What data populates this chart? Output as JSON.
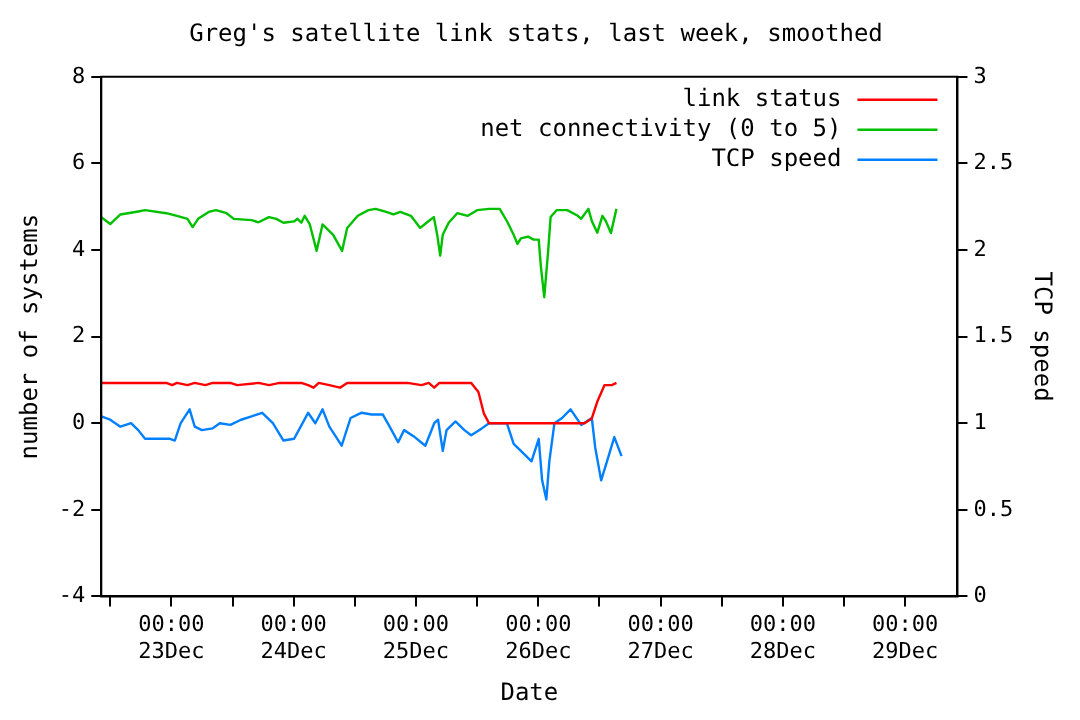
{
  "chart_data": {
    "type": "line",
    "title": "Greg's satellite link stats, last week, smoothed",
    "xlabel": "Date",
    "ylabel": "number of systems",
    "y2label": "TCP speed",
    "legend": "top right",
    "marker": "none",
    "grid": false,
    "xlim": [
      "--12-22T10:15",
      "--12-29T10:15"
    ],
    "xticks": [
      {
        "value": "--12-22T12:00",
        "label": null
      },
      {
        "value": "--12-23T00:00",
        "label": "00:00\n23Dec"
      },
      {
        "value": "--12-23T12:00",
        "label": null
      },
      {
        "value": "--12-24T00:00",
        "label": "00:00\n24Dec"
      },
      {
        "value": "--12-24T12:00",
        "label": null
      },
      {
        "value": "--12-25T00:00",
        "label": "00:00\n25Dec"
      },
      {
        "value": "--12-25T12:00",
        "label": null
      },
      {
        "value": "--12-26T00:00",
        "label": "00:00\n26Dec"
      },
      {
        "value": "--12-26T12:00",
        "label": null
      },
      {
        "value": "--12-27T00:00",
        "label": "00:00\n27Dec"
      },
      {
        "value": "--12-27T12:00",
        "label": null
      },
      {
        "value": "--12-28T00:00",
        "label": "00:00\n28Dec"
      },
      {
        "value": "--12-28T12:00",
        "label": null
      },
      {
        "value": "--12-29T00:00",
        "label": "00:00\n29Dec"
      }
    ],
    "ylim": [
      -4,
      8
    ],
    "yticks": [
      -4,
      -2,
      0,
      2,
      4,
      6,
      8
    ],
    "y2lim": [
      0,
      3
    ],
    "y2ticks": [
      0,
      0.5,
      1,
      1.5,
      2,
      2.5,
      3
    ],
    "series": [
      {
        "name": "link status",
        "color": "#ff0000",
        "x": [
          "--12-22T10:15",
          "--12-22T23:00",
          "--12-23T00:10",
          "--12-23T01:05",
          "--12-23T03:10",
          "--12-23T04:35",
          "--12-23T06:40",
          "--12-23T08:05",
          "--12-23T11:35",
          "--12-23T12:55",
          "--12-23T17:05",
          "--12-23T19:10",
          "--12-23T21:15",
          "--12-24T01:30",
          "--12-24T02:50",
          "--12-24T03:55",
          "--12-24T04:55",
          "--12-24T07:00",
          "--12-24T09:05",
          "--12-24T10:30",
          "--12-24T22:20",
          "--12-25T01:05",
          "--12-25T02:30",
          "--12-25T03:35",
          "--12-25T04:35",
          "--12-25T06:40",
          "--12-25T10:50",
          "--12-25T12:15",
          "--12-25T13:20",
          "--12-25T14:20",
          "--12-26T09:05",
          "--12-26T10:30",
          "--12-26T11:35",
          "--12-26T13:00",
          "--12-26T14:25",
          "--12-26T15:20"
        ],
        "values": [
          0.93,
          0.93,
          0.88,
          0.93,
          0.88,
          0.93,
          0.88,
          0.93,
          0.93,
          0.88,
          0.93,
          0.88,
          0.93,
          0.93,
          0.88,
          0.82,
          0.93,
          0.88,
          0.82,
          0.93,
          0.93,
          0.88,
          0.93,
          0.82,
          0.93,
          0.93,
          0.93,
          0.72,
          0.22,
          0,
          0,
          0.11,
          0.5,
          0.88,
          0.88,
          0.93
        ]
      },
      {
        "name": "net connectivity (0 to 5)",
        "color": "#00c000",
        "x": [
          "--12-22T10:15",
          "--12-22T12:00",
          "--12-22T14:00",
          "--12-22T17:30",
          "--12-22T18:50",
          "--12-22T23:00",
          "--12-23T01:05",
          "--12-23T03:10",
          "--12-23T04:10",
          "--12-23T05:15",
          "--12-23T07:20",
          "--12-23T08:45",
          "--12-23T10:50",
          "--12-23T12:15",
          "--12-23T15:45",
          "--12-23T17:05",
          "--12-23T19:10",
          "--12-23T20:35",
          "--12-23T22:00",
          "--12-24T00:05",
          "--12-24T00:45",
          "--12-24T01:30",
          "--12-24T02:10",
          "--12-24T03:10",
          "--12-24T04:30",
          "--12-24T05:40",
          "--12-24T07:45",
          "--12-24T09:30",
          "--12-24T10:30",
          "--12-24T12:35",
          "--12-24T14:40",
          "--12-24T16:05",
          "--12-24T18:10",
          "--12-24T19:35",
          "--12-24T20:55",
          "--12-24T23:00",
          "--12-25T00:50",
          "--12-25T02:30",
          "--12-25T03:30",
          "--12-25T04:10",
          "--12-25T04:45",
          "--12-25T05:15",
          "--12-25T06:25",
          "--12-25T08:05",
          "--12-25T10:10",
          "--12-25T12:00",
          "--12-25T14:20",
          "--12-25T16:25",
          "--12-25T17:50",
          "--12-25T19:10",
          "--12-25T19:55",
          "--12-25T20:35",
          "--12-25T22:00",
          "--12-25T23:05",
          "--12-26T00:05",
          "--12-26T00:30",
          "--12-26T01:10",
          "--12-26T01:55",
          "--12-26T02:25",
          "--12-26T03:35",
          "--12-26T05:40",
          "--12-26T07:45",
          "--12-26T08:25",
          "--12-26T09:50",
          "--12-26T10:30",
          "--12-26T11:35",
          "--12-26T12:35",
          "--12-26T13:15",
          "--12-26T14:15",
          "--12-26T15:20"
        ],
        "values": [
          4.76,
          4.6,
          4.82,
          4.89,
          4.92,
          4.85,
          4.79,
          4.72,
          4.53,
          4.72,
          4.88,
          4.92,
          4.85,
          4.72,
          4.69,
          4.64,
          4.76,
          4.72,
          4.63,
          4.66,
          4.72,
          4.63,
          4.79,
          4.59,
          3.98,
          4.59,
          4.35,
          3.98,
          4.51,
          4.79,
          4.92,
          4.95,
          4.88,
          4.82,
          4.88,
          4.79,
          4.51,
          4.67,
          4.76,
          4.35,
          3.87,
          4.35,
          4.63,
          4.85,
          4.79,
          4.92,
          4.95,
          4.95,
          4.67,
          4.35,
          4.14,
          4.27,
          4.31,
          4.24,
          4.24,
          3.63,
          2.91,
          3.95,
          4.76,
          4.92,
          4.92,
          4.79,
          4.72,
          4.95,
          4.67,
          4.4,
          4.79,
          4.67,
          4.39,
          4.95
        ]
      },
      {
        "name": "TCP speed",
        "color": "#0080ff",
        "axis": "y2",
        "x": [
          "--12-22T10:15",
          "--12-22T12:00",
          "--12-22T14:00",
          "--12-22T16:05",
          "--12-22T17:30",
          "--12-22T18:50",
          "--12-22T21:40",
          "--12-22T23:45",
          "--12-23T00:40",
          "--12-23T01:50",
          "--12-23T03:35",
          "--12-23T04:35",
          "--12-23T06:00",
          "--12-23T08:05",
          "--12-23T09:30",
          "--12-23T11:35",
          "--12-23T13:40",
          "--12-23T15:45",
          "--12-23T17:50",
          "--12-23T19:55",
          "--12-23T22:00",
          "--12-24T00:05",
          "--12-24T02:50",
          "--12-24T04:15",
          "--12-24T05:40",
          "--12-24T07:00",
          "--12-24T09:25",
          "--12-24T11:10",
          "--12-24T13:15",
          "--12-24T15:20",
          "--12-24T17:30",
          "--12-24T18:50",
          "--12-24T20:30",
          "--12-24T21:40",
          "--12-24T23:45",
          "--12-25T01:50",
          "--12-25T03:35",
          "--12-25T04:20",
          "--12-25T05:15",
          "--12-25T06:00",
          "--12-25T07:45",
          "--12-25T09:30",
          "--12-25T10:50",
          "--12-25T12:55",
          "--12-25T14:20",
          "--12-25T17:50",
          "--12-25T19:10",
          "--12-25T20:35",
          "--12-25T22:40",
          "--12-26T00:05",
          "--12-26T00:45",
          "--12-26T01:35",
          "--12-26T02:10",
          "--12-26T03:10",
          "--12-26T04:40",
          "--12-26T06:20",
          "--12-26T08:25",
          "--12-26T10:30",
          "--12-26T11:10",
          "--12-26T12:20",
          "--12-26T13:35",
          "--12-26T14:55",
          "--12-26T16:20"
        ],
        "values": [
          1.04,
          1.02,
          0.98,
          1.0,
          0.96,
          0.91,
          0.91,
          0.91,
          0.9,
          1.0,
          1.08,
          0.98,
          0.96,
          0.97,
          1.0,
          0.99,
          1.02,
          1.04,
          1.06,
          1.0,
          0.9,
          0.91,
          1.06,
          1.0,
          1.08,
          0.98,
          0.87,
          1.03,
          1.06,
          1.05,
          1.05,
          0.98,
          0.89,
          0.96,
          0.92,
          0.87,
          1.0,
          1.02,
          0.84,
          0.96,
          1.01,
          0.96,
          0.93,
          0.97,
          1.0,
          1.0,
          0.88,
          0.84,
          0.78,
          0.91,
          0.67,
          0.56,
          0.78,
          1.0,
          1.03,
          1.08,
          0.99,
          1.03,
          0.86,
          0.67,
          0.79,
          0.92,
          0.81
        ]
      }
    ]
  }
}
